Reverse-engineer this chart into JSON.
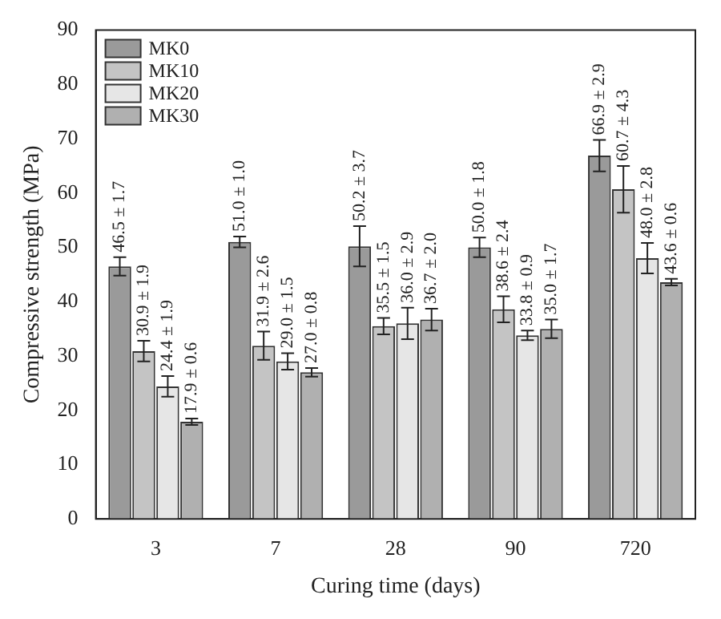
{
  "chart_data": {
    "type": "bar",
    "xlabel": "Curing time (days)",
    "ylabel": "Compressive strength (MPa)",
    "categories": [
      "3",
      "7",
      "28",
      "90",
      "720"
    ],
    "series": [
      {
        "name": "MK0",
        "color": "#9a9a9a",
        "values": [
          46.5,
          51.0,
          50.2,
          50.0,
          66.9
        ],
        "errors": [
          1.7,
          1.0,
          3.7,
          1.8,
          2.9
        ],
        "value_labels": [
          "46.5 ± 1.7",
          "51.0 ± 1.0",
          "50.2 ± 3.7",
          "50.0 ± 1.8",
          "66.9 ± 2.9"
        ]
      },
      {
        "name": "MK10",
        "color": "#c4c4c4",
        "values": [
          30.9,
          31.9,
          35.5,
          38.6,
          60.7
        ],
        "errors": [
          1.9,
          2.6,
          1.5,
          2.4,
          4.3
        ],
        "value_labels": [
          "30.9 ± 1.9",
          "31.9 ± 2.6",
          "35.5 ± 1.5",
          "38.6 ± 2.4",
          "60.7 ± 4.3"
        ]
      },
      {
        "name": "MK20",
        "color": "#e6e6e6",
        "values": [
          24.4,
          29.0,
          36.0,
          33.8,
          48.0
        ],
        "errors": [
          1.9,
          1.5,
          2.9,
          0.9,
          2.8
        ],
        "value_labels": [
          "24.4 ± 1.9",
          "29.0 ± 1.5",
          "36.0 ± 2.9",
          "33.8 ± 0.9",
          "48.0 ± 2.8"
        ]
      },
      {
        "name": "MK30",
        "color": "#b0b0b0",
        "values": [
          17.9,
          27.0,
          36.7,
          35.0,
          43.6
        ],
        "errors": [
          0.6,
          0.8,
          2.0,
          1.7,
          0.6
        ],
        "value_labels": [
          "17.9 ± 0.6",
          "27.0 ± 0.8",
          "36.7 ± 2.0",
          "35.0 ± 1.7",
          "43.6 ± 0.6"
        ]
      }
    ],
    "ylim": [
      0,
      90
    ],
    "yticks": [
      0,
      10,
      20,
      30,
      40,
      50,
      60,
      70,
      80,
      90
    ],
    "grid": false,
    "legend": "top left"
  }
}
